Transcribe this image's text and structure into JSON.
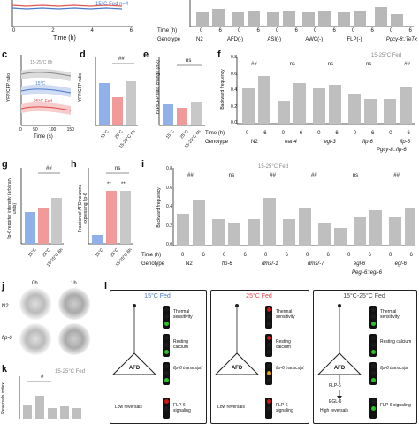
{
  "panels": {
    "top": {
      "legend": "15°C Fed",
      "legend_n": "n=4",
      "xlabel": "Time (h)",
      "xticks": [
        "0",
        "2",
        "4",
        "6"
      ]
    },
    "b_tail": {
      "row_time": "Time (h)",
      "row_genotype": "Genotype",
      "genotypes": [
        "N2",
        "AFD(-)",
        "ASI(-)",
        "AWC(-)",
        "FLP(-)",
        "Pgcy-8::TeTx"
      ],
      "time_vals": [
        "0",
        "6"
      ]
    },
    "c": {
      "label": "c",
      "ylabel": "YFP/CFP ratio",
      "xlabel": "Time (s)",
      "xticks": [
        "0",
        "50",
        "100",
        "150"
      ],
      "yticks": [
        "0.4",
        "0.6",
        "0.8",
        "1.0",
        "1.2"
      ],
      "series": [
        "15-25°C 6h",
        "15°C",
        "25°C Fed"
      ]
    },
    "d": {
      "label": "d",
      "ylabel": "YFP/CFP ratio",
      "cats": [
        "15°C",
        "25°C",
        "15-25°C 6h"
      ],
      "sig": "##"
    },
    "e": {
      "label": "e",
      "ylabel": "YFP/CFP ratio change (ΔR)",
      "cats": [
        "15°C",
        "25°C",
        "15-25°C 6h"
      ],
      "sig": "ns"
    },
    "f": {
      "label": "f",
      "tag": "15-25°C Fed",
      "ylabel": "Backward frequency",
      "yticks": [
        "0.0",
        "0.2",
        "0.4",
        "0.6",
        "0.8"
      ],
      "row_time": "Time (h)",
      "row_genotype": "Genotype",
      "time_vals": [
        "0",
        "6",
        "0",
        "6",
        "0",
        "6",
        "0",
        "6",
        "0",
        "6"
      ],
      "genotypes": [
        "N2",
        "eat-4",
        "egl-3",
        "flp-6",
        "flp-6"
      ],
      "genotype_sub": "Pgcy-8::flp-6",
      "sigs": [
        "##",
        "ns",
        "ns",
        "ns",
        "##"
      ]
    },
    "g": {
      "label": "g",
      "ylabel": "flp-6 reporter intensity (arbitrary units)",
      "cats": [
        "15°C",
        "25°C",
        "15-25°C 6h"
      ],
      "sig": "##"
    },
    "h": {
      "label": "h",
      "ylabel": "Fraction of AFD neurons expressing flp-6",
      "cats": [
        "15°C",
        "25°C",
        "15-25°C 6h"
      ],
      "sig": "ns",
      "marks": [
        "**",
        "**"
      ]
    },
    "i": {
      "label": "i",
      "tag": "15-25°C Fed",
      "ylabel": "Backward frequency",
      "yticks": [
        "0.0",
        "0.2",
        "0.4",
        "0.6",
        "0.8"
      ],
      "row_time": "Time (h)",
      "row_genotype": "Genotype",
      "time_vals": [
        "0",
        "6",
        "0",
        "6",
        "0",
        "6",
        "0",
        "6",
        "0",
        "6",
        "0",
        "6"
      ],
      "genotypes": [
        "N2",
        "flp-6",
        "dmsr-1",
        "dmsr-7",
        "egl-6",
        "egl-6"
      ],
      "genotype_sub": "Pegl-6::egl-6",
      "sigs": [
        "##",
        "ns",
        "##",
        "##",
        "ns",
        "##"
      ]
    },
    "j": {
      "label": "j",
      "cols": [
        "0h",
        "1h"
      ],
      "rows": [
        "N2",
        "flp-6"
      ]
    },
    "k": {
      "label": "k",
      "ylabel": "Reversals index",
      "tag": "15-25°C Fed",
      "sig": "#"
    },
    "l": {
      "label": "l",
      "boxes": [
        {
          "title": "15°C Fed",
          "color": "#4a78c9",
          "neuron": "AFD",
          "states": [
            "Thermal sensitivity",
            "Resting calcium",
            "flp-6 transcript"
          ],
          "outcome": "Low reversals",
          "outcome2": "FLP-6 signaling"
        },
        {
          "title": "25°C Fed",
          "color": "#e04848",
          "neuron": "AFD",
          "states": [
            "Thermal sensitivity",
            "Resting calcium",
            "flp-6 transcript"
          ],
          "outcome": "Low reversals",
          "outcome2": "FLP-6 signaling"
        },
        {
          "title": "15°C-25°C Fed",
          "color": "#444444",
          "neuron": "AFD",
          "states": [
            "Thermal sensitivity",
            "Resting calcium",
            "flp-6 transcript"
          ],
          "arrow1": "FLP-6",
          "arrow2": "EGL-6",
          "outcome": "High reversals",
          "outcome2": "FLP-6 signaling"
        }
      ]
    }
  },
  "colors": {
    "blue": "#6b8fd6",
    "red": "#e66a6a",
    "gray": "#9a9a9a",
    "green": "#29c12c",
    "lightred": "#d01515",
    "amber": "#e6a21a"
  }
}
